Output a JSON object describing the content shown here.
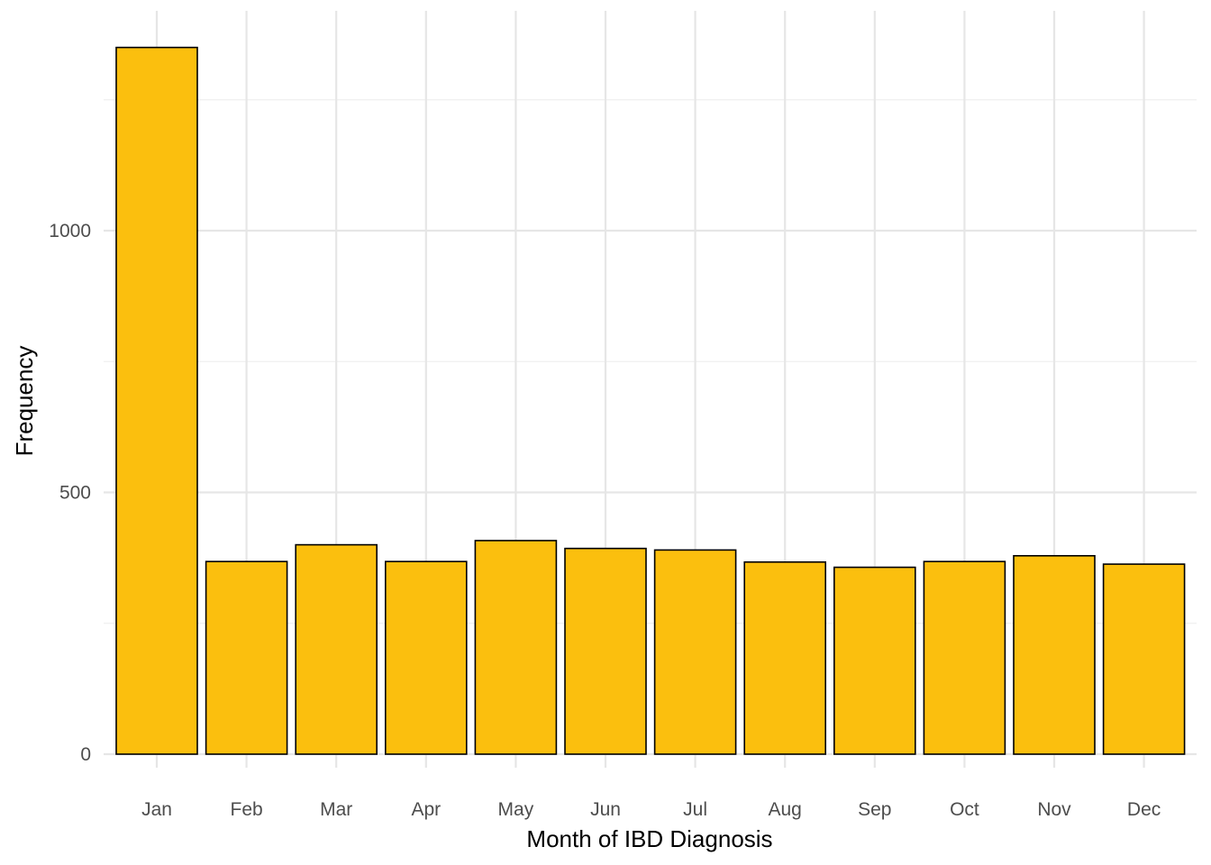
{
  "chart_data": {
    "type": "bar",
    "title": "",
    "xlabel": "Month of IBD Diagnosis",
    "ylabel": "Frequency",
    "categories": [
      "Jan",
      "Feb",
      "Mar",
      "Apr",
      "May",
      "Jun",
      "Jul",
      "Aug",
      "Sep",
      "Oct",
      "Nov",
      "Dec"
    ],
    "values": [
      1350,
      368,
      400,
      368,
      408,
      393,
      390,
      367,
      357,
      368,
      379,
      363
    ],
    "ylim": [
      0,
      1350
    ],
    "y_ticks": [
      0,
      500,
      1000
    ],
    "y_minor_ticks": [
      250,
      750,
      1250
    ],
    "grid": true,
    "legend": "none",
    "colors": {
      "bar_fill": "#FBBF0E",
      "bar_outline": "#000000",
      "grid": "#e6e6e6"
    }
  }
}
